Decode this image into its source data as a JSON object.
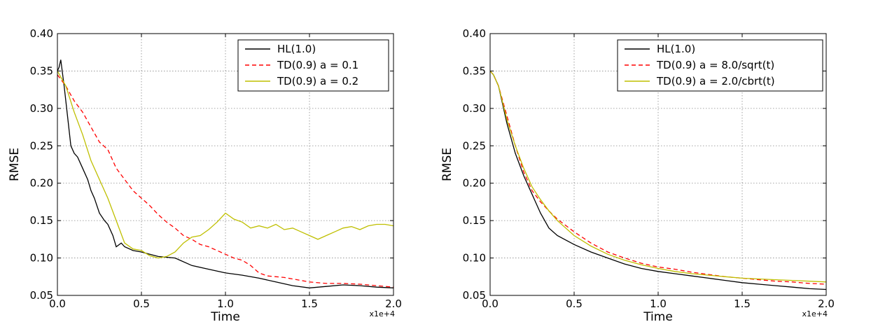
{
  "chart_data": [
    {
      "type": "line",
      "title": "",
      "xlabel": "Time",
      "ylabel": "RMSE",
      "x_multiplier": "x1e+4",
      "xlim": [
        0,
        2.0
      ],
      "ylim": [
        0.05,
        0.4
      ],
      "xticks": [
        "0.0",
        "0.5",
        "1.0",
        "1.5",
        "2.0"
      ],
      "yticks": [
        "0.05",
        "0.10",
        "0.15",
        "0.20",
        "0.25",
        "0.30",
        "0.35",
        "0.40"
      ],
      "grid": true,
      "legend_position": "top-right",
      "series": [
        {
          "name": "HL(1.0)",
          "color": "#000000",
          "dash": "solid",
          "x": [
            0,
            0.01,
            0.02,
            0.04,
            0.06,
            0.08,
            0.1,
            0.12,
            0.15,
            0.18,
            0.2,
            0.22,
            0.25,
            0.28,
            0.3,
            0.33,
            0.35,
            0.38,
            0.4,
            0.45,
            0.5,
            0.55,
            0.6,
            0.7,
            0.8,
            0.9,
            1.0,
            1.1,
            1.2,
            1.3,
            1.4,
            1.5,
            1.6,
            1.7,
            1.8,
            1.9,
            2.0
          ],
          "y": [
            0.35,
            0.355,
            0.365,
            0.33,
            0.29,
            0.25,
            0.24,
            0.235,
            0.22,
            0.205,
            0.19,
            0.18,
            0.16,
            0.15,
            0.145,
            0.13,
            0.115,
            0.12,
            0.115,
            0.11,
            0.108,
            0.105,
            0.102,
            0.1,
            0.09,
            0.085,
            0.08,
            0.077,
            0.073,
            0.068,
            0.063,
            0.06,
            0.062,
            0.064,
            0.063,
            0.061,
            0.06
          ]
        },
        {
          "name": "TD(0.9) a = 0.1",
          "color": "#ff0000",
          "dash": "dashed",
          "x": [
            0,
            0.05,
            0.1,
            0.15,
            0.2,
            0.25,
            0.3,
            0.35,
            0.4,
            0.45,
            0.5,
            0.55,
            0.6,
            0.65,
            0.7,
            0.75,
            0.8,
            0.85,
            0.9,
            0.95,
            1.0,
            1.05,
            1.1,
            1.15,
            1.2,
            1.25,
            1.3,
            1.35,
            1.4,
            1.5,
            1.6,
            1.7,
            1.8,
            1.9,
            2.0
          ],
          "y": [
            0.345,
            0.33,
            0.31,
            0.295,
            0.275,
            0.255,
            0.245,
            0.22,
            0.205,
            0.19,
            0.18,
            0.17,
            0.158,
            0.148,
            0.14,
            0.13,
            0.125,
            0.118,
            0.115,
            0.11,
            0.105,
            0.1,
            0.097,
            0.09,
            0.08,
            0.076,
            0.075,
            0.074,
            0.072,
            0.068,
            0.066,
            0.066,
            0.065,
            0.063,
            0.061
          ]
        },
        {
          "name": "TD(0.9) a = 0.2",
          "color": "#bfbf00",
          "dash": "solid",
          "x": [
            0,
            0.05,
            0.1,
            0.15,
            0.2,
            0.25,
            0.3,
            0.35,
            0.4,
            0.45,
            0.5,
            0.55,
            0.6,
            0.65,
            0.7,
            0.75,
            0.8,
            0.85,
            0.9,
            0.95,
            1.0,
            1.05,
            1.1,
            1.15,
            1.2,
            1.25,
            1.3,
            1.35,
            1.4,
            1.45,
            1.5,
            1.55,
            1.6,
            1.65,
            1.7,
            1.75,
            1.8,
            1.85,
            1.9,
            1.95,
            2.0
          ],
          "y": [
            0.35,
            0.33,
            0.295,
            0.265,
            0.23,
            0.205,
            0.18,
            0.15,
            0.12,
            0.112,
            0.11,
            0.103,
            0.1,
            0.102,
            0.108,
            0.12,
            0.128,
            0.13,
            0.138,
            0.148,
            0.16,
            0.152,
            0.148,
            0.14,
            0.143,
            0.14,
            0.145,
            0.138,
            0.14,
            0.135,
            0.13,
            0.125,
            0.13,
            0.135,
            0.14,
            0.142,
            0.138,
            0.143,
            0.145,
            0.145,
            0.143
          ]
        }
      ]
    },
    {
      "type": "line",
      "title": "",
      "xlabel": "Time",
      "ylabel": "RMSE",
      "x_multiplier": "x1e+4",
      "xlim": [
        0,
        2.0
      ],
      "ylim": [
        0.05,
        0.4
      ],
      "xticks": [
        "0.0",
        "0.5",
        "1.0",
        "1.5",
        "2.0"
      ],
      "yticks": [
        "0.05",
        "0.10",
        "0.15",
        "0.20",
        "0.25",
        "0.30",
        "0.35",
        "0.40"
      ],
      "grid": true,
      "legend_position": "top-right",
      "series": [
        {
          "name": "HL(1.0)",
          "color": "#000000",
          "dash": "solid",
          "x": [
            0,
            0.02,
            0.05,
            0.1,
            0.15,
            0.2,
            0.25,
            0.3,
            0.35,
            0.4,
            0.5,
            0.6,
            0.7,
            0.8,
            0.9,
            1.0,
            1.1,
            1.2,
            1.3,
            1.4,
            1.5,
            1.6,
            1.7,
            1.8,
            1.9,
            2.0
          ],
          "y": [
            0.35,
            0.345,
            0.33,
            0.28,
            0.24,
            0.21,
            0.185,
            0.16,
            0.14,
            0.13,
            0.118,
            0.108,
            0.1,
            0.092,
            0.086,
            0.082,
            0.079,
            0.076,
            0.073,
            0.07,
            0.067,
            0.065,
            0.063,
            0.061,
            0.059,
            0.058
          ]
        },
        {
          "name": "TD(0.9) a = 8.0/sqrt(t)",
          "color": "#ff0000",
          "dash": "dashed",
          "x": [
            0,
            0.02,
            0.05,
            0.1,
            0.15,
            0.2,
            0.25,
            0.3,
            0.35,
            0.4,
            0.5,
            0.6,
            0.7,
            0.8,
            0.9,
            1.0,
            1.1,
            1.2,
            1.3,
            1.4,
            1.5,
            1.6,
            1.7,
            1.8,
            1.9,
            2.0
          ],
          "y": [
            0.35,
            0.345,
            0.33,
            0.29,
            0.25,
            0.215,
            0.19,
            0.175,
            0.163,
            0.152,
            0.135,
            0.12,
            0.108,
            0.1,
            0.093,
            0.088,
            0.085,
            0.081,
            0.078,
            0.075,
            0.073,
            0.071,
            0.069,
            0.068,
            0.066,
            0.065
          ]
        },
        {
          "name": "TD(0.9) a = 2.0/cbrt(t)",
          "color": "#bfbf00",
          "dash": "solid",
          "x": [
            0,
            0.02,
            0.05,
            0.1,
            0.15,
            0.2,
            0.25,
            0.3,
            0.35,
            0.4,
            0.5,
            0.6,
            0.7,
            0.8,
            0.9,
            1.0,
            1.1,
            1.2,
            1.3,
            1.4,
            1.5,
            1.6,
            1.7,
            1.8,
            1.9,
            2.0
          ],
          "y": [
            0.35,
            0.345,
            0.33,
            0.285,
            0.25,
            0.22,
            0.195,
            0.178,
            0.163,
            0.15,
            0.13,
            0.116,
            0.105,
            0.097,
            0.091,
            0.086,
            0.082,
            0.079,
            0.077,
            0.075,
            0.073,
            0.072,
            0.071,
            0.07,
            0.069,
            0.068
          ]
        }
      ]
    }
  ]
}
